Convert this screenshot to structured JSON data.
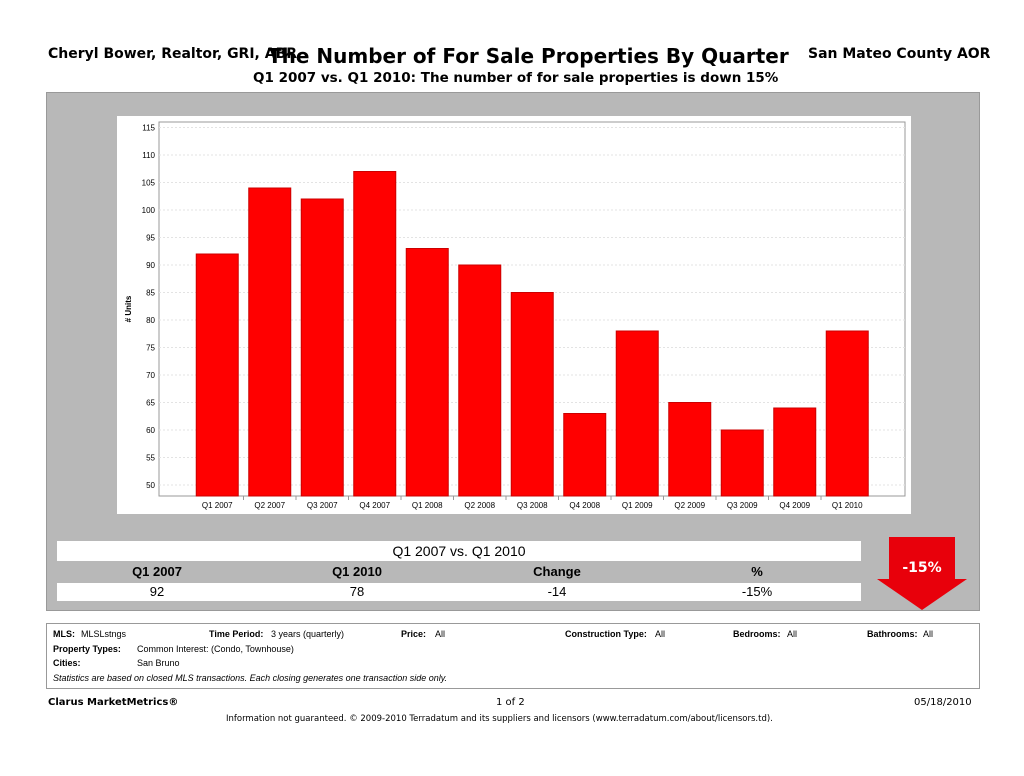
{
  "header": {
    "agent": "Cheryl Bower, Realtor, GRI, ABR",
    "title": "The Number of For Sale Properties By Quarter",
    "association": "San Mateo County AOR",
    "subtitle": "Q1 2007 vs. Q1 2010:  The number of for sale properties is down 15%"
  },
  "chart_data": {
    "type": "bar",
    "title": "The Number of For Sale Properties By Quarter",
    "xlabel": "",
    "ylabel": "# Units",
    "ylim": [
      48,
      116
    ],
    "yticks": [
      50,
      55,
      60,
      65,
      70,
      75,
      80,
      85,
      90,
      95,
      100,
      105,
      110,
      115
    ],
    "grid": true,
    "categories": [
      "Q1 2007",
      "Q2 2007",
      "Q3 2007",
      "Q4 2007",
      "Q1 2008",
      "Q2 2008",
      "Q3 2008",
      "Q4 2008",
      "Q1 2009",
      "Q2 2009",
      "Q3 2009",
      "Q4 2009",
      "Q1 2010"
    ],
    "values": [
      92,
      104,
      102,
      107,
      93,
      90,
      85,
      63,
      78,
      65,
      60,
      64,
      78
    ],
    "bar_color": "#ff0000"
  },
  "stats": {
    "heading": "Q1 2007 vs. Q1 2010",
    "headers": [
      "Q1 2007",
      "Q1 2010",
      "Change",
      "%"
    ],
    "values": [
      "92",
      "78",
      "-14",
      "-15%"
    ],
    "badge": "-15%",
    "badge_color": "#e8000b"
  },
  "info": {
    "mls_label": "MLS:",
    "mls_value": "MLSLstngs",
    "time_label": "Time Period:",
    "time_value": "3 years (quarterly)",
    "price_label": "Price:",
    "price_value": "All",
    "construction_label": "Construction Type:",
    "construction_value": "All",
    "bedrooms_label": "Bedrooms:",
    "bedrooms_value": "All",
    "bathrooms_label": "Bathrooms:",
    "bathrooms_value": "All",
    "ptype_label": "Property Types:",
    "ptype_value": "Common Interest: (Condo, Townhouse)",
    "cities_label": "Cities:",
    "cities_value": "San Bruno",
    "note": "Statistics are based on closed MLS transactions.  Each closing generates one transaction side only."
  },
  "footer": {
    "brand": "Clarus MarketMetrics®",
    "page": "1 of 2",
    "date": "05/18/2010",
    "disclaimer": "Information not guaranteed.  © 2009-2010 Terradatum and its suppliers and licensors (www.terradatum.com/about/licensors.td)."
  }
}
